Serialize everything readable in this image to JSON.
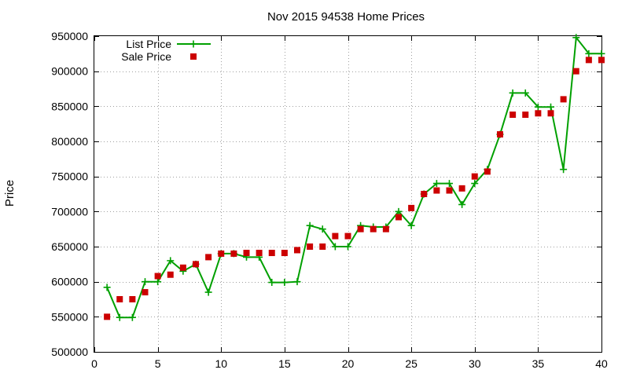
{
  "chart_data": {
    "type": "line",
    "title": "Nov 2015 94538 Home Prices",
    "xlabel": "",
    "ylabel": "Price",
    "xlim": [
      0,
      40
    ],
    "ylim": [
      500000,
      950000
    ],
    "x_ticks": [
      "0",
      "5",
      "10",
      "15",
      "20",
      "25",
      "30",
      "35",
      "40"
    ],
    "y_ticks": [
      "500000",
      "550000",
      "600000",
      "650000",
      "700000",
      "750000",
      "800000",
      "850000",
      "900000",
      "950000"
    ],
    "grid": true,
    "legend_position": "top-left",
    "series": [
      {
        "name": "List Price",
        "style": "line-with-plus-markers",
        "color": "#00a000",
        "x": [
          1,
          2,
          3,
          4,
          5,
          6,
          7,
          8,
          9,
          10,
          11,
          12,
          13,
          14,
          15,
          16,
          17,
          18,
          19,
          20,
          21,
          22,
          23,
          24,
          25,
          26,
          27,
          28,
          29,
          30,
          31,
          32,
          33,
          34,
          35,
          36,
          37,
          38,
          39,
          40
        ],
        "values": [
          592000,
          549000,
          549000,
          600000,
          600000,
          630000,
          615000,
          625000,
          585000,
          640000,
          640000,
          635000,
          635000,
          599000,
          599000,
          600000,
          680000,
          675000,
          650000,
          650000,
          680000,
          678000,
          678000,
          700000,
          680000,
          725000,
          740000,
          740000,
          710000,
          740000,
          760000,
          810000,
          869000,
          869000,
          849000,
          849000,
          760000,
          948000,
          925000,
          925000
        ]
      },
      {
        "name": "Sale Price",
        "style": "square-markers",
        "color": "#cc0000",
        "x": [
          1,
          2,
          3,
          4,
          5,
          6,
          7,
          8,
          9,
          10,
          11,
          12,
          13,
          14,
          15,
          16,
          17,
          18,
          19,
          20,
          21,
          22,
          23,
          24,
          25,
          26,
          27,
          28,
          29,
          30,
          31,
          32,
          33,
          34,
          35,
          36,
          37,
          38,
          39,
          40
        ],
        "values": [
          550000,
          575000,
          575000,
          585000,
          608000,
          610000,
          620000,
          625000,
          635000,
          640000,
          640000,
          641000,
          641000,
          641000,
          641000,
          645000,
          650000,
          650000,
          665000,
          665000,
          675000,
          675000,
          675000,
          692000,
          705000,
          725000,
          730000,
          730000,
          733000,
          750000,
          757000,
          810000,
          838000,
          838000,
          840000,
          840000,
          860000,
          900000,
          916000,
          916000
        ]
      }
    ]
  }
}
